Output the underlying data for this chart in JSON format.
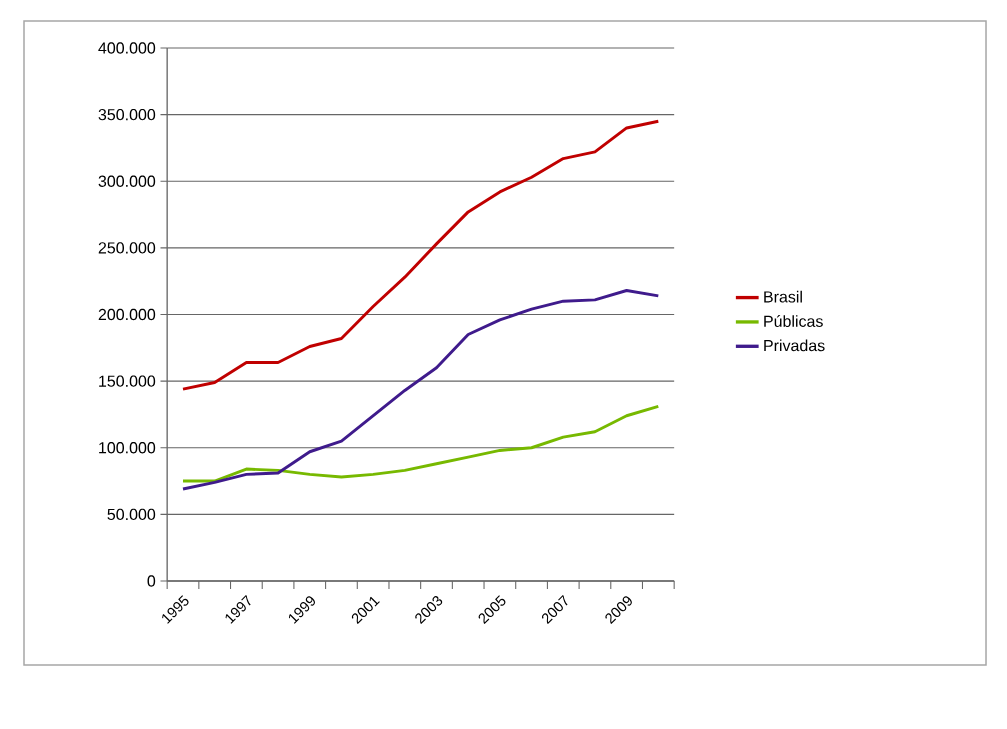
{
  "chart_data": {
    "type": "line",
    "categories": [
      "1995",
      null,
      "1997",
      null,
      "1999",
      null,
      "2001",
      null,
      "2003",
      null,
      "2005",
      null,
      "2007",
      null,
      "2009",
      null
    ],
    "series": [
      {
        "name": "Brasil",
        "color": "#c00000",
        "values": [
          144000,
          149000,
          164000,
          164000,
          176000,
          182000,
          206000,
          228000,
          253000,
          277000,
          292000,
          303000,
          317000,
          322000,
          340000,
          345000
        ]
      },
      {
        "name": "Públicas",
        "color": "#77b900",
        "values": [
          75000,
          75000,
          84000,
          83000,
          80000,
          78000,
          80000,
          83000,
          88000,
          93000,
          98000,
          100000,
          108000,
          112000,
          124000,
          131000
        ]
      },
      {
        "name": "Privadas",
        "color": "#3f1b8c",
        "values": [
          69000,
          74000,
          80000,
          81000,
          97000,
          105000,
          124000,
          143000,
          160000,
          185000,
          196000,
          204000,
          210000,
          211000,
          218000,
          214000
        ]
      }
    ],
    "ylim": [
      0,
      400000
    ],
    "yticks": [
      {
        "value": 0,
        "label": "0"
      },
      {
        "value": 50000,
        "label": "50.000"
      },
      {
        "value": 100000,
        "label": "100.000"
      },
      {
        "value": 150000,
        "label": "150.000"
      },
      {
        "value": 200000,
        "label": "200.000"
      },
      {
        "value": 250000,
        "label": "250.000"
      },
      {
        "value": 300000,
        "label": "300.000"
      },
      {
        "value": 350000,
        "label": "350.000"
      },
      {
        "value": 400000,
        "label": "400.000"
      }
    ],
    "grid": "y",
    "legend": "right",
    "marker": "none",
    "line_style": "solid"
  }
}
